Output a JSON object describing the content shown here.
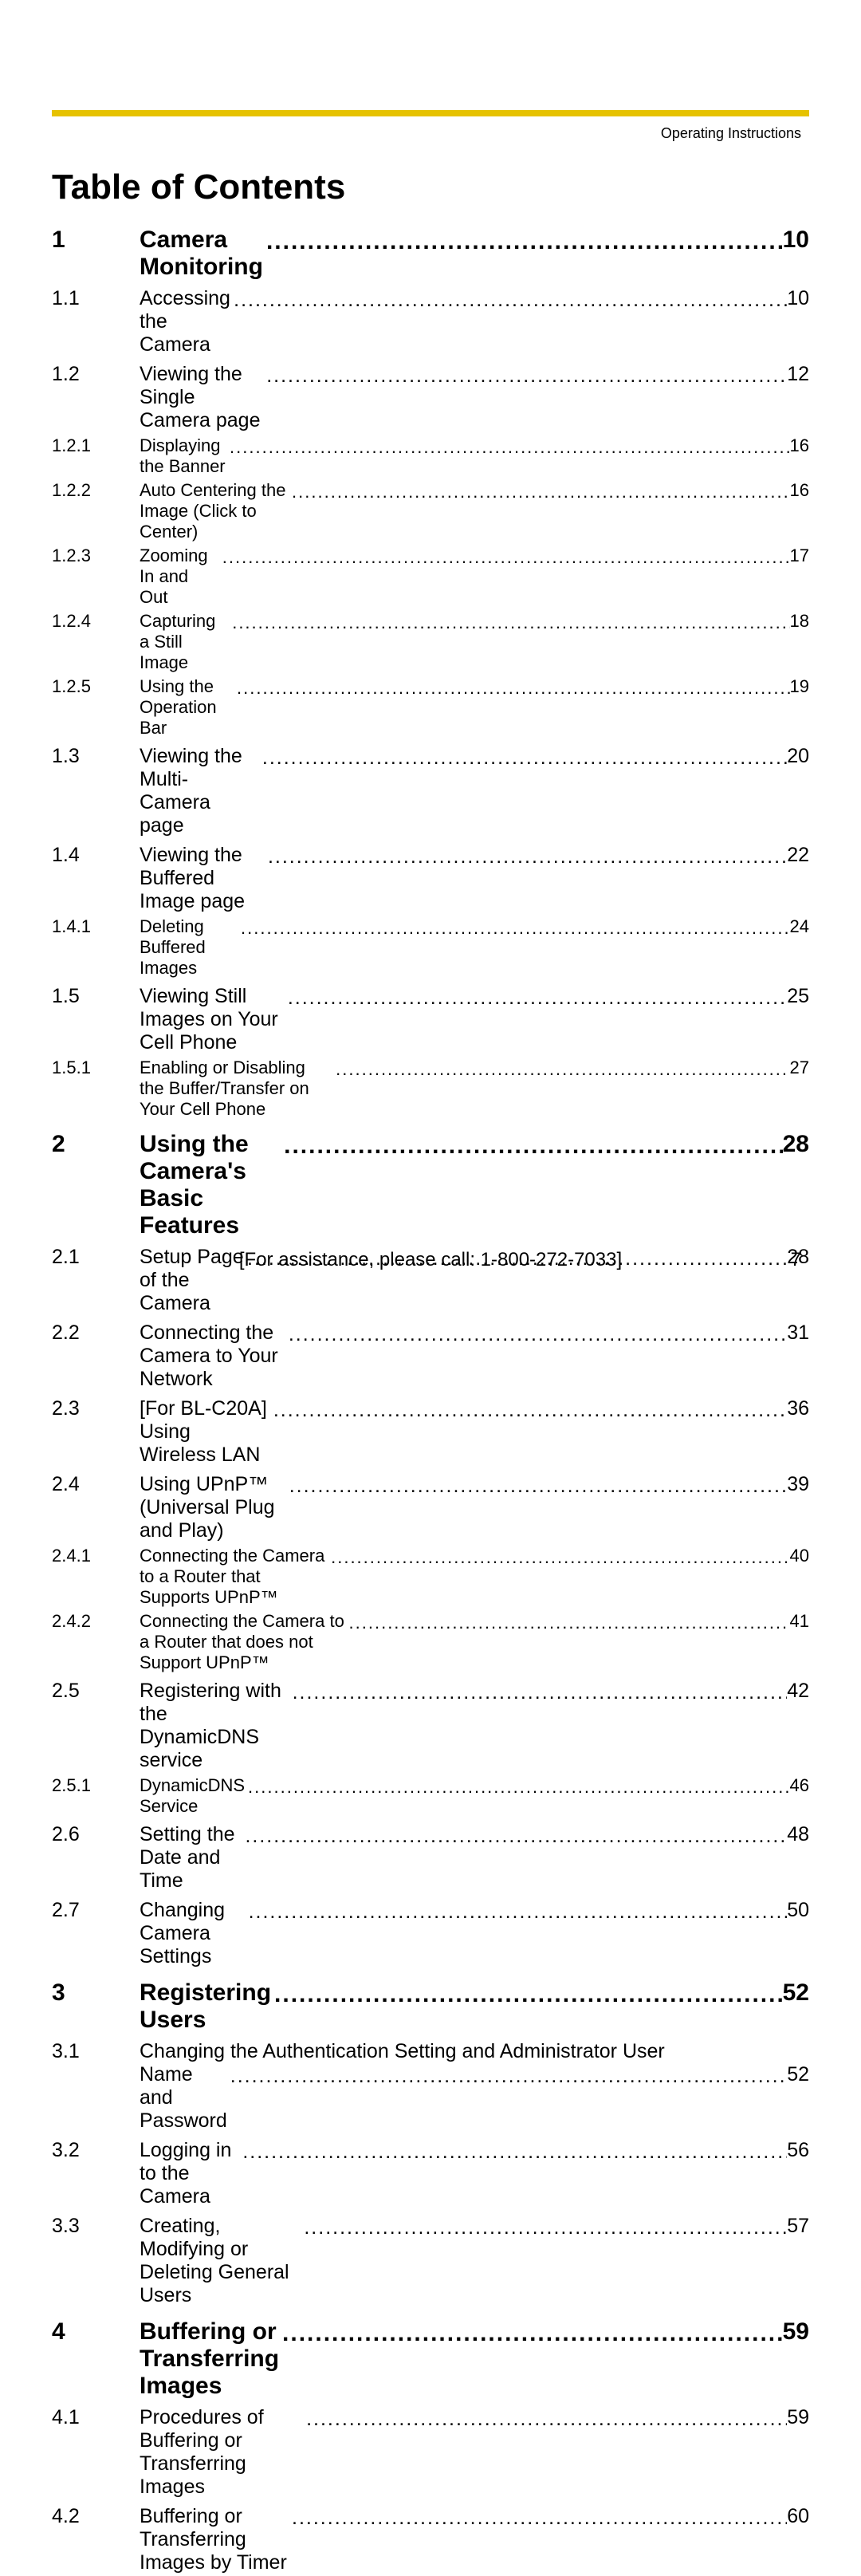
{
  "header": "Operating Instructions",
  "title": "Table of Contents",
  "colors": {
    "accent_bar": "#e6c200",
    "text": "#000000",
    "background": "#ffffff"
  },
  "fonts": {
    "title_size": 44,
    "chapter_size": 30,
    "section_size": 25,
    "subsection_size": 22,
    "header_size": 18,
    "footer_size": 24
  },
  "toc": [
    {
      "level": "chapter",
      "num": "1",
      "title": "Camera Monitoring",
      "page": "10"
    },
    {
      "level": "section",
      "num": "1.1",
      "title": "Accessing the Camera",
      "page": "10"
    },
    {
      "level": "section",
      "num": "1.2",
      "title": "Viewing the Single Camera page",
      "page": "12"
    },
    {
      "level": "subsection",
      "num": "1.2.1",
      "title": "Displaying the Banner",
      "page": "16"
    },
    {
      "level": "subsection",
      "num": "1.2.2",
      "title": "Auto Centering the Image (Click to Center)",
      "page": "16"
    },
    {
      "level": "subsection",
      "num": "1.2.3",
      "title": "Zooming In and Out",
      "page": "17"
    },
    {
      "level": "subsection",
      "num": "1.2.4",
      "title": "Capturing a Still Image",
      "page": "18"
    },
    {
      "level": "subsection",
      "num": "1.2.5",
      "title": "Using the Operation Bar",
      "page": "19"
    },
    {
      "level": "section",
      "num": "1.3",
      "title": "Viewing the Multi-Camera page",
      "page": "20"
    },
    {
      "level": "section",
      "num": "1.4",
      "title": "Viewing the Buffered Image page",
      "page": "22"
    },
    {
      "level": "subsection",
      "num": "1.4.1",
      "title": "Deleting Buffered Images",
      "page": "24"
    },
    {
      "level": "section",
      "num": "1.5",
      "title": "Viewing Still Images on Your Cell Phone",
      "page": "25"
    },
    {
      "level": "subsection",
      "num": "1.5.1",
      "title": "Enabling or Disabling the Buffer/Transfer on Your Cell Phone",
      "page": "27"
    },
    {
      "level": "chapter",
      "num": "2",
      "title": "Using the Camera's Basic Features",
      "page": "28"
    },
    {
      "level": "section",
      "num": "2.1",
      "title": "Setup Page of the Camera",
      "page": "28"
    },
    {
      "level": "section",
      "num": "2.2",
      "title": "Connecting the Camera to Your Network",
      "page": "31"
    },
    {
      "level": "section",
      "num": "2.3",
      "title": "[For BL-C20A] Using Wireless LAN",
      "page": "36"
    },
    {
      "level": "section",
      "num": "2.4",
      "title": "Using UPnP™ (Universal Plug and Play)",
      "page": "39"
    },
    {
      "level": "subsection",
      "num": "2.4.1",
      "title": "Connecting the Camera to a Router that Supports UPnP™",
      "page": "40"
    },
    {
      "level": "subsection",
      "num": "2.4.2",
      "title": "Connecting the Camera to a Router that does not Support UPnP™",
      "page": "41"
    },
    {
      "level": "section",
      "num": "2.5",
      "title": "Registering with the DynamicDNS service",
      "page": "42"
    },
    {
      "level": "subsection",
      "num": "2.5.1",
      "title": "DynamicDNS Service",
      "page": "46"
    },
    {
      "level": "section",
      "num": "2.6",
      "title": "Setting the Date and Time",
      "page": "48"
    },
    {
      "level": "section",
      "num": "2.7",
      "title": "Changing Camera Settings",
      "page": "50"
    },
    {
      "level": "chapter",
      "num": "3",
      "title": "Registering Users",
      "page": "52"
    },
    {
      "level": "section",
      "num": "3.1",
      "title_line1": "Changing the Authentication Setting and Administrator User",
      "title_line2": "Name and Password",
      "page": "52",
      "wrapped": true
    },
    {
      "level": "section",
      "num": "3.2",
      "title": "Logging in to the Camera",
      "page": "56"
    },
    {
      "level": "section",
      "num": "3.3",
      "title": "Creating, Modifying or Deleting General Users",
      "page": "57"
    },
    {
      "level": "chapter",
      "num": "4",
      "title": "Buffering or Transferring Images",
      "page": "59"
    },
    {
      "level": "section",
      "num": "4.1",
      "title": "Procedures of Buffering or Transferring Images",
      "page": "59"
    },
    {
      "level": "section",
      "num": "4.2",
      "title": "Buffering or Transferring Images by Timer",
      "page": "60"
    }
  ],
  "footer": {
    "text": "[For assistance, please call: 1-800-272-7033]",
    "page": "7"
  }
}
